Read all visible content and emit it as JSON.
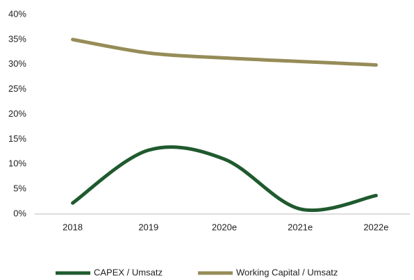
{
  "chart_data": {
    "type": "line",
    "categories": [
      "2018",
      "2019",
      "2020e",
      "2021e",
      "2022e"
    ],
    "series": [
      {
        "name": "CAPEX / Umsatz",
        "color": "#1f5a2e",
        "values": [
          2.2,
          12.8,
          11.0,
          1.0,
          3.7
        ]
      },
      {
        "name": "Working Capital / Umsatz",
        "color": "#968c58",
        "values": [
          35.0,
          32.3,
          31.3,
          30.6,
          29.9
        ]
      }
    ],
    "ylim": [
      0,
      40
    ],
    "yticks": [
      {
        "value": 0,
        "label": "0%"
      },
      {
        "value": 5,
        "label": "5%"
      },
      {
        "value": 10,
        "label": "10%"
      },
      {
        "value": 15,
        "label": "15%"
      },
      {
        "value": 20,
        "label": "20%"
      },
      {
        "value": 25,
        "label": "25%"
      },
      {
        "value": 30,
        "label": "30%"
      },
      {
        "value": 35,
        "label": "35%"
      },
      {
        "value": 40,
        "label": "40%"
      }
    ],
    "grid": false,
    "smooth": true,
    "legend": "bottom"
  }
}
